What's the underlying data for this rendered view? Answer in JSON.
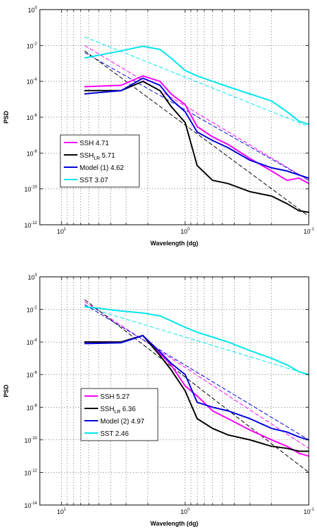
{
  "chart_data": [
    {
      "type": "line",
      "xlabel": "Wavelength (dg)",
      "ylabel": "PSD",
      "x_scale": "log",
      "y_scale": "log",
      "x_reversed": true,
      "xlim": [
        15,
        0.1
      ],
      "ylim": [
        1e-12,
        1
      ],
      "x_ticks": [
        {
          "base": "10",
          "exp": "1"
        },
        {
          "base": "10",
          "exp": "0"
        },
        {
          "base": "10",
          "exp": "-1"
        }
      ],
      "y_ticks": [
        {
          "base": "10",
          "exp": "0"
        },
        {
          "base": "10",
          "exp": "-2"
        },
        {
          "base": "10",
          "exp": "-4"
        },
        {
          "base": "10",
          "exp": "-6"
        },
        {
          "base": "10",
          "exp": "-8"
        },
        {
          "base": "10",
          "exp": "-10"
        },
        {
          "base": "10",
          "exp": "-12"
        }
      ],
      "grid": true,
      "legend_position": "bottom-left",
      "series": [
        {
          "name": "SSH",
          "sub": "",
          "value": "4.71",
          "color": "#ff00ff",
          "x": [
            6.5,
            3.3,
            2.2,
            1.6,
            1.3,
            1.0,
            0.8,
            0.6,
            0.45,
            0.3,
            0.2,
            0.15,
            0.12,
            0.1
          ],
          "y": [
            5e-05,
            6e-05,
            0.0002,
            0.0001,
            2e-05,
            5e-06,
            3e-07,
            8e-08,
            3e-08,
            5e-09,
            1e-09,
            3e-10,
            4e-10,
            2e-10
          ]
        },
        {
          "name": "SSH",
          "sub": "LR",
          "value": "5.71",
          "color": "#000000",
          "x": [
            6.5,
            3.3,
            2.2,
            1.6,
            1.3,
            1.0,
            0.8,
            0.6,
            0.45,
            0.3,
            0.2,
            0.15,
            0.12,
            0.1
          ],
          "y": [
            3e-05,
            3e-05,
            0.0001,
            3e-05,
            4e-06,
            5e-07,
            2e-09,
            3e-10,
            2e-10,
            7e-11,
            4e-11,
            1.5e-11,
            6e-12,
            5e-12
          ]
        },
        {
          "name": "Model (1)",
          "sub": "",
          "value": "4.62",
          "color": "#0000dd",
          "x": [
            6.5,
            3.3,
            2.2,
            1.6,
            1.3,
            1.0,
            0.8,
            0.6,
            0.45,
            0.3,
            0.2,
            0.15,
            0.12,
            0.1
          ],
          "y": [
            2e-05,
            3e-05,
            0.00015,
            6e-05,
            1e-05,
            2e-06,
            1.5e-07,
            5e-08,
            2e-08,
            4e-09,
            1.5e-09,
            1e-09,
            6e-10,
            4e-10
          ]
        },
        {
          "name": "SST",
          "sub": "",
          "value": "3.07",
          "color": "#00e5ee",
          "x": [
            6.5,
            3.3,
            2.2,
            1.6,
            1.3,
            1.0,
            0.8,
            0.6,
            0.45,
            0.3,
            0.2,
            0.15,
            0.12,
            0.1
          ],
          "y": [
            0.002,
            0.005,
            0.009,
            0.006,
            0.002,
            0.0004,
            0.0002,
            0.0001,
            5e-05,
            2e-05,
            8e-06,
            2e-06,
            6e-07,
            4e-07
          ]
        }
      ],
      "fit_lines": [
        {
          "color": "#00e5ee",
          "x": [
            6.5,
            0.1
          ],
          "y": [
            0.03,
            3e-07
          ]
        },
        {
          "color": "#ff00ff",
          "x": [
            6.5,
            0.1
          ],
          "y": [
            0.01,
            3e-10
          ]
        },
        {
          "color": "#0000dd",
          "x": [
            6.5,
            0.1
          ],
          "y": [
            0.004,
            3e-10
          ]
        },
        {
          "color": "#000000",
          "x": [
            6.5,
            0.1
          ],
          "y": [
            0.005,
            3e-12
          ]
        }
      ]
    },
    {
      "type": "line",
      "xlabel": "Wavelength (dg)",
      "ylabel": "PSD",
      "x_scale": "log",
      "y_scale": "log",
      "x_reversed": true,
      "xlim": [
        15,
        0.1
      ],
      "ylim": [
        1e-14,
        1
      ],
      "x_ticks": [
        {
          "base": "10",
          "exp": "1"
        },
        {
          "base": "10",
          "exp": "0"
        },
        {
          "base": "10",
          "exp": "-1"
        }
      ],
      "y_ticks": [
        {
          "base": "10",
          "exp": "0"
        },
        {
          "base": "10",
          "exp": "-2"
        },
        {
          "base": "10",
          "exp": "-4"
        },
        {
          "base": "10",
          "exp": "-6"
        },
        {
          "base": "10",
          "exp": "-8"
        },
        {
          "base": "10",
          "exp": "-10"
        },
        {
          "base": "10",
          "exp": "-12"
        },
        {
          "base": "10",
          "exp": "-14"
        }
      ],
      "grid": true,
      "legend_position": "bottom-left",
      "series": [
        {
          "name": "SSH",
          "sub": "",
          "value": "5.27",
          "color": "#ff00ff",
          "x": [
            6.5,
            3.3,
            2.2,
            1.6,
            1.3,
            1.0,
            0.8,
            0.6,
            0.45,
            0.3,
            0.2,
            0.15,
            0.12,
            0.1
          ],
          "y": [
            0.0001,
            0.0001,
            0.00025,
            2e-05,
            4e-06,
            2e-07,
            5e-08,
            6e-09,
            2e-09,
            4e-10,
            1e-10,
            4e-11,
            1.5e-11,
            1e-11
          ]
        },
        {
          "name": "SSH",
          "sub": "LR",
          "value": "6.36",
          "color": "#000000",
          "x": [
            6.5,
            3.3,
            2.2,
            1.6,
            1.3,
            1.0,
            0.8,
            0.6,
            0.45,
            0.3,
            0.2,
            0.15,
            0.12,
            0.1
          ],
          "y": [
            0.0001,
            0.0001,
            0.00025,
            1.5e-05,
            2e-06,
            1e-07,
            2e-09,
            5e-10,
            2e-10,
            1e-10,
            4e-11,
            3e-11,
            2e-11,
            2e-11
          ]
        },
        {
          "name": "Model (2)",
          "sub": "",
          "value": "4.97",
          "color": "#0000dd",
          "x": [
            6.5,
            3.3,
            2.2,
            1.6,
            1.3,
            1.0,
            0.8,
            0.6,
            0.45,
            0.3,
            0.2,
            0.15,
            0.12,
            0.1
          ],
          "y": [
            8e-05,
            9e-05,
            0.00025,
            2.5e-05,
            5e-06,
            1e-06,
            2e-08,
            1e-08,
            6e-09,
            2e-09,
            5e-10,
            3e-10,
            1.5e-10,
            1e-10
          ]
        },
        {
          "name": "SST",
          "sub": "",
          "value": "2.46",
          "color": "#00e5ee",
          "x": [
            6.5,
            3.3,
            2.2,
            1.6,
            1.3,
            1.0,
            0.8,
            0.6,
            0.45,
            0.3,
            0.2,
            0.15,
            0.12,
            0.1
          ],
          "y": [
            0.015,
            0.008,
            0.006,
            0.004,
            0.002,
            0.0008,
            0.0004,
            0.0002,
            0.0001,
            3e-05,
            1e-05,
            4e-06,
            1.5e-06,
            1e-06
          ]
        }
      ],
      "fit_lines": [
        {
          "color": "#00e5ee",
          "x": [
            6.5,
            0.1
          ],
          "y": [
            0.015,
            1e-06
          ]
        },
        {
          "color": "#ff00ff",
          "x": [
            6.5,
            0.1
          ],
          "y": [
            0.03,
            3e-11
          ]
        },
        {
          "color": "#0000dd",
          "x": [
            6.5,
            0.1
          ],
          "y": [
            0.02,
            1e-10
          ]
        },
        {
          "color": "#000000",
          "x": [
            6.5,
            0.1
          ],
          "y": [
            0.04,
            1e-12
          ]
        }
      ]
    }
  ]
}
